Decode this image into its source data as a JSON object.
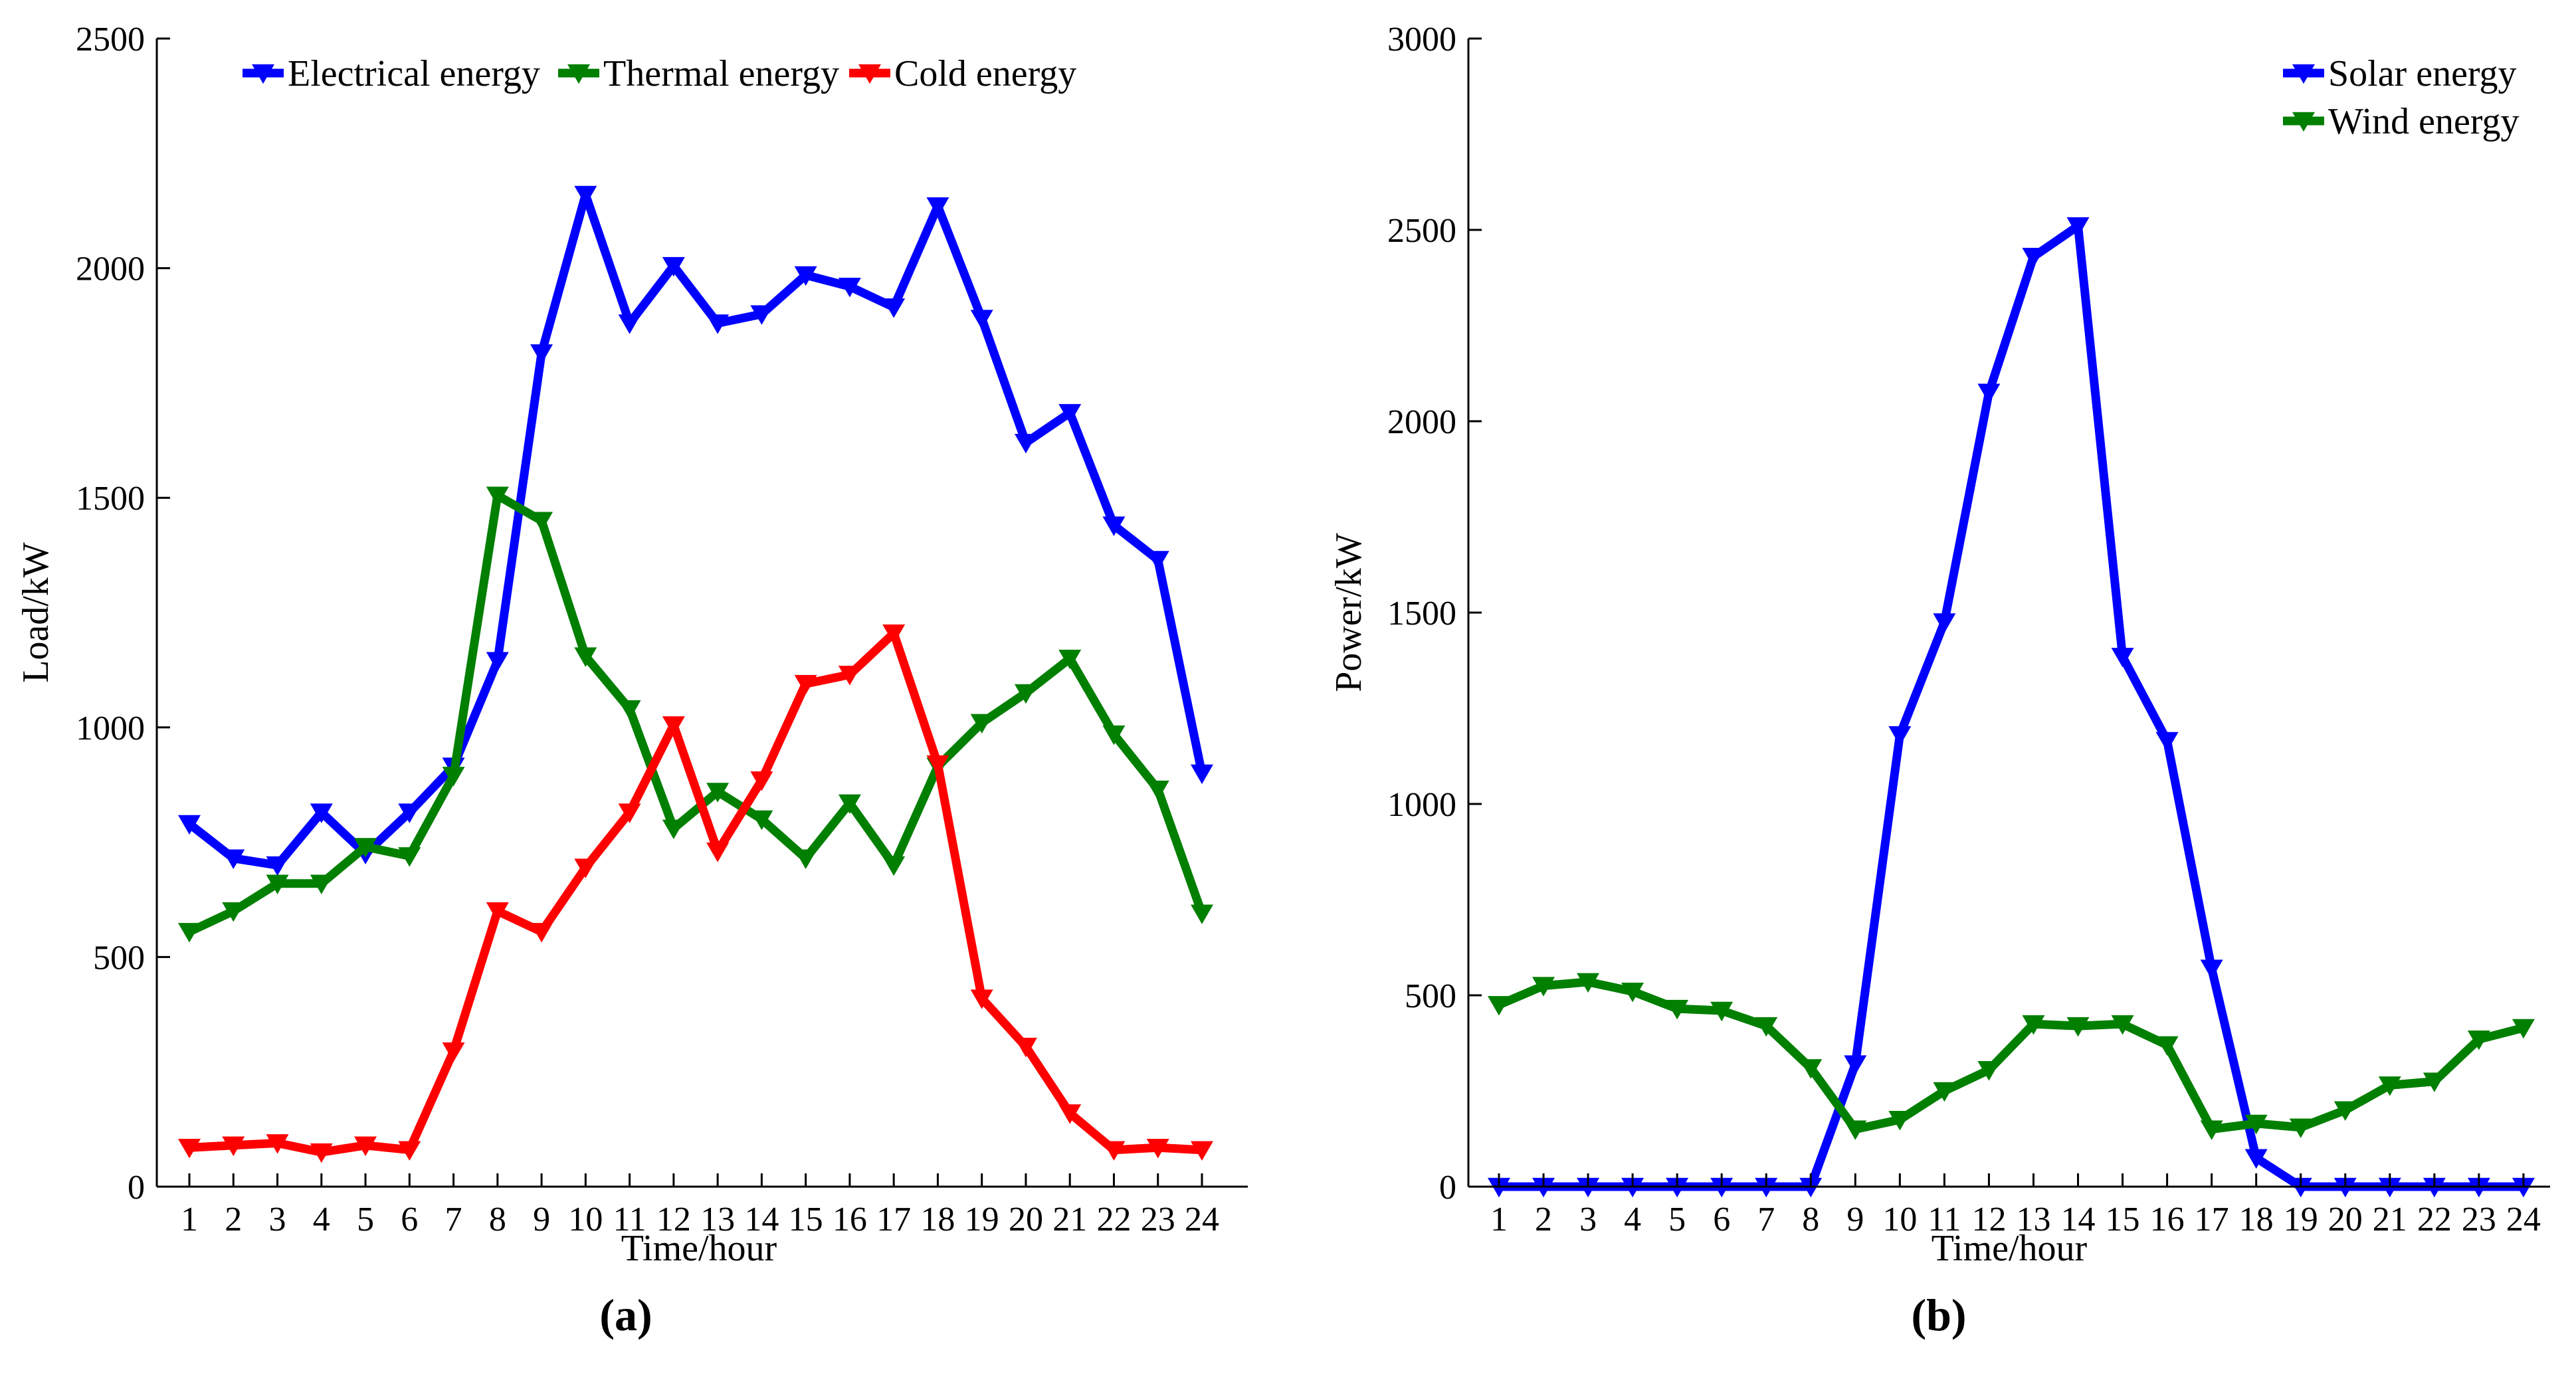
{
  "chart_data": [
    {
      "type": "line",
      "panel_label": "(a)",
      "xlabel": "Time/hour",
      "ylabel": "Load/kW",
      "ylim": [
        0,
        2500
      ],
      "yticks": [
        0,
        500,
        1000,
        1500,
        2000,
        2500
      ],
      "categories": [
        "1",
        "2",
        "3",
        "4",
        "5",
        "6",
        "7",
        "8",
        "9",
        "10",
        "11",
        "12",
        "13",
        "14",
        "15",
        "16",
        "17",
        "18",
        "19",
        "20",
        "21",
        "22",
        "23",
        "24"
      ],
      "legend_position": "top-center",
      "grid": false,
      "series": [
        {
          "name": "Electrical energy",
          "color": "#0000ff",
          "values": [
            790,
            715,
            700,
            815,
            725,
            815,
            915,
            1145,
            1815,
            2160,
            1880,
            2005,
            1880,
            1900,
            1985,
            1960,
            1915,
            2135,
            1890,
            1620,
            1685,
            1440,
            1365,
            900
          ]
        },
        {
          "name": "Thermal energy",
          "color": "#007f00",
          "values": [
            555,
            600,
            660,
            660,
            740,
            720,
            895,
            1505,
            1450,
            1155,
            1040,
            780,
            860,
            800,
            715,
            835,
            700,
            915,
            1010,
            1075,
            1150,
            985,
            865,
            595
          ]
        },
        {
          "name": "Cold energy",
          "color": "#ff0000",
          "values": [
            85,
            90,
            95,
            75,
            90,
            80,
            295,
            600,
            555,
            695,
            815,
            1005,
            730,
            885,
            1095,
            1115,
            1205,
            920,
            410,
            305,
            160,
            80,
            85,
            80
          ]
        }
      ]
    },
    {
      "type": "line",
      "panel_label": "(b)",
      "xlabel": "Time/hour",
      "ylabel": "Power/kW",
      "ylim": [
        0,
        3000
      ],
      "yticks": [
        0,
        500,
        1000,
        1500,
        2000,
        2500,
        3000
      ],
      "categories": [
        "1",
        "2",
        "3",
        "4",
        "5",
        "6",
        "7",
        "8",
        "9",
        "10",
        "11",
        "12",
        "13",
        "14",
        "15",
        "16",
        "17",
        "18",
        "19",
        "20",
        "21",
        "22",
        "23",
        "24"
      ],
      "legend_position": "top-right",
      "grid": false,
      "series": [
        {
          "name": "Solar energy",
          "color": "#0000ff",
          "values": [
            0,
            0,
            0,
            0,
            0,
            0,
            0,
            0,
            320,
            1180,
            1475,
            2075,
            2430,
            2510,
            1385,
            1165,
            570,
            75,
            0,
            0,
            0,
            0,
            0,
            0
          ]
        },
        {
          "name": "Wind energy",
          "color": "#007f00",
          "values": [
            475,
            525,
            535,
            510,
            465,
            460,
            420,
            310,
            150,
            175,
            250,
            305,
            425,
            420,
            425,
            370,
            150,
            165,
            155,
            200,
            265,
            275,
            385,
            415
          ]
        }
      ]
    }
  ]
}
